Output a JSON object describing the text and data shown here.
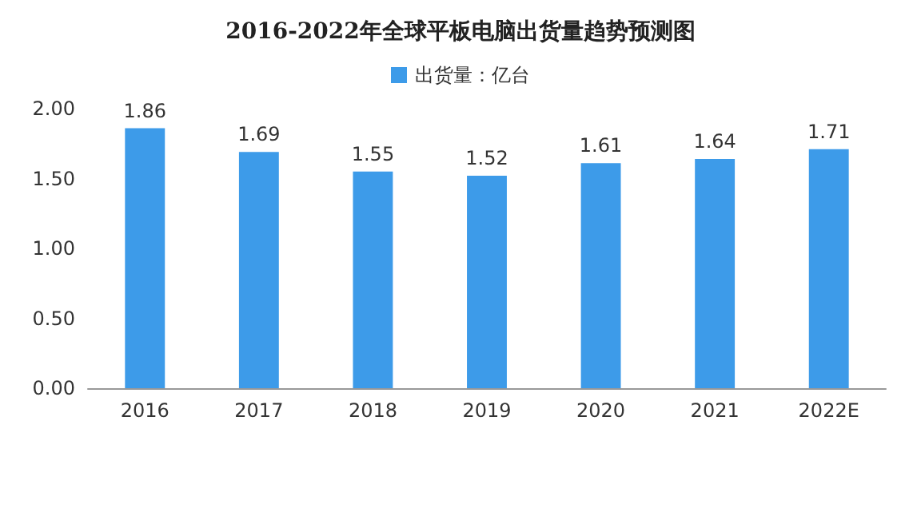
{
  "chart_data": {
    "type": "bar",
    "title": "2016-2022年全球平板电脑出货量趋势预测图",
    "categories": [
      "2016",
      "2017",
      "2018",
      "2019",
      "2020",
      "2021",
      "2022E"
    ],
    "series": [
      {
        "name": "出货量：亿台",
        "color": "#3d9be9",
        "values": [
          1.86,
          1.69,
          1.55,
          1.52,
          1.61,
          1.64,
          1.71
        ]
      }
    ],
    "ylim": [
      0,
      2
    ],
    "yticks": [
      {
        "value": 0,
        "label": "0.00"
      },
      {
        "value": 0.5,
        "label": "0.50"
      },
      {
        "value": 1,
        "label": "1.00"
      },
      {
        "value": 1.5,
        "label": "1.50"
      },
      {
        "value": 2,
        "label": "2.00"
      }
    ],
    "data_labels": true,
    "legend": "top",
    "grid": false
  }
}
